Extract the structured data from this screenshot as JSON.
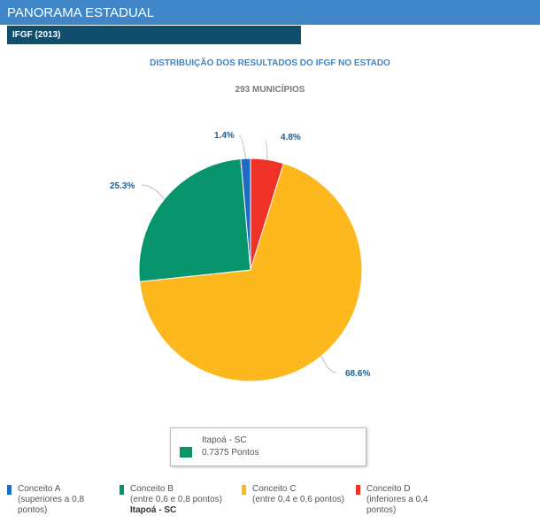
{
  "header": {
    "title": "PANORAMA ESTADUAL",
    "subtitle": "IFGF (2013)"
  },
  "colors": {
    "header": "#3e86c8",
    "subheader": "#104e6c",
    "label": "#1f5f8e"
  },
  "chart_data": {
    "type": "pie",
    "title": "DISTRIBUIÇÃO DOS RESULTADOS DO IFGF NO ESTADO",
    "subtitle": "293 MUNICÍPIOS",
    "slices": [
      {
        "name": "Conceito D",
        "value": 4.8,
        "label": "4.8%",
        "color": "#ef3226"
      },
      {
        "name": "Conceito C",
        "value": 68.6,
        "label": "68.6%",
        "color": "#fdb81e"
      },
      {
        "name": "Conceito B",
        "value": 25.3,
        "label": "25.3%",
        "color": "#07936b"
      },
      {
        "name": "Conceito A",
        "value": 1.4,
        "label": "1.4%",
        "color": "#1d6bc6"
      }
    ]
  },
  "tooltip": {
    "name": "Itapoá - SC",
    "value": "0.7375 Pontos",
    "color": "#07936b"
  },
  "legend": [
    {
      "name": "Conceito A",
      "lines": [
        "(superiores a 0,8",
        "pontos)"
      ],
      "color": "#1d6bc6",
      "municipality": ""
    },
    {
      "name": "Conceito B",
      "lines": [
        "(entre 0,6 e 0,8 pontos)"
      ],
      "color": "#07936b",
      "municipality": "Itapoá - SC"
    },
    {
      "name": "Conceito C",
      "lines": [
        "(entre 0,4 e 0,6 pontos)"
      ],
      "color": "#fdb81e",
      "municipality": ""
    },
    {
      "name": "Conceito D",
      "lines": [
        "(inferiores a 0,4",
        "pontos)"
      ],
      "color": "#ef3226",
      "municipality": ""
    }
  ]
}
